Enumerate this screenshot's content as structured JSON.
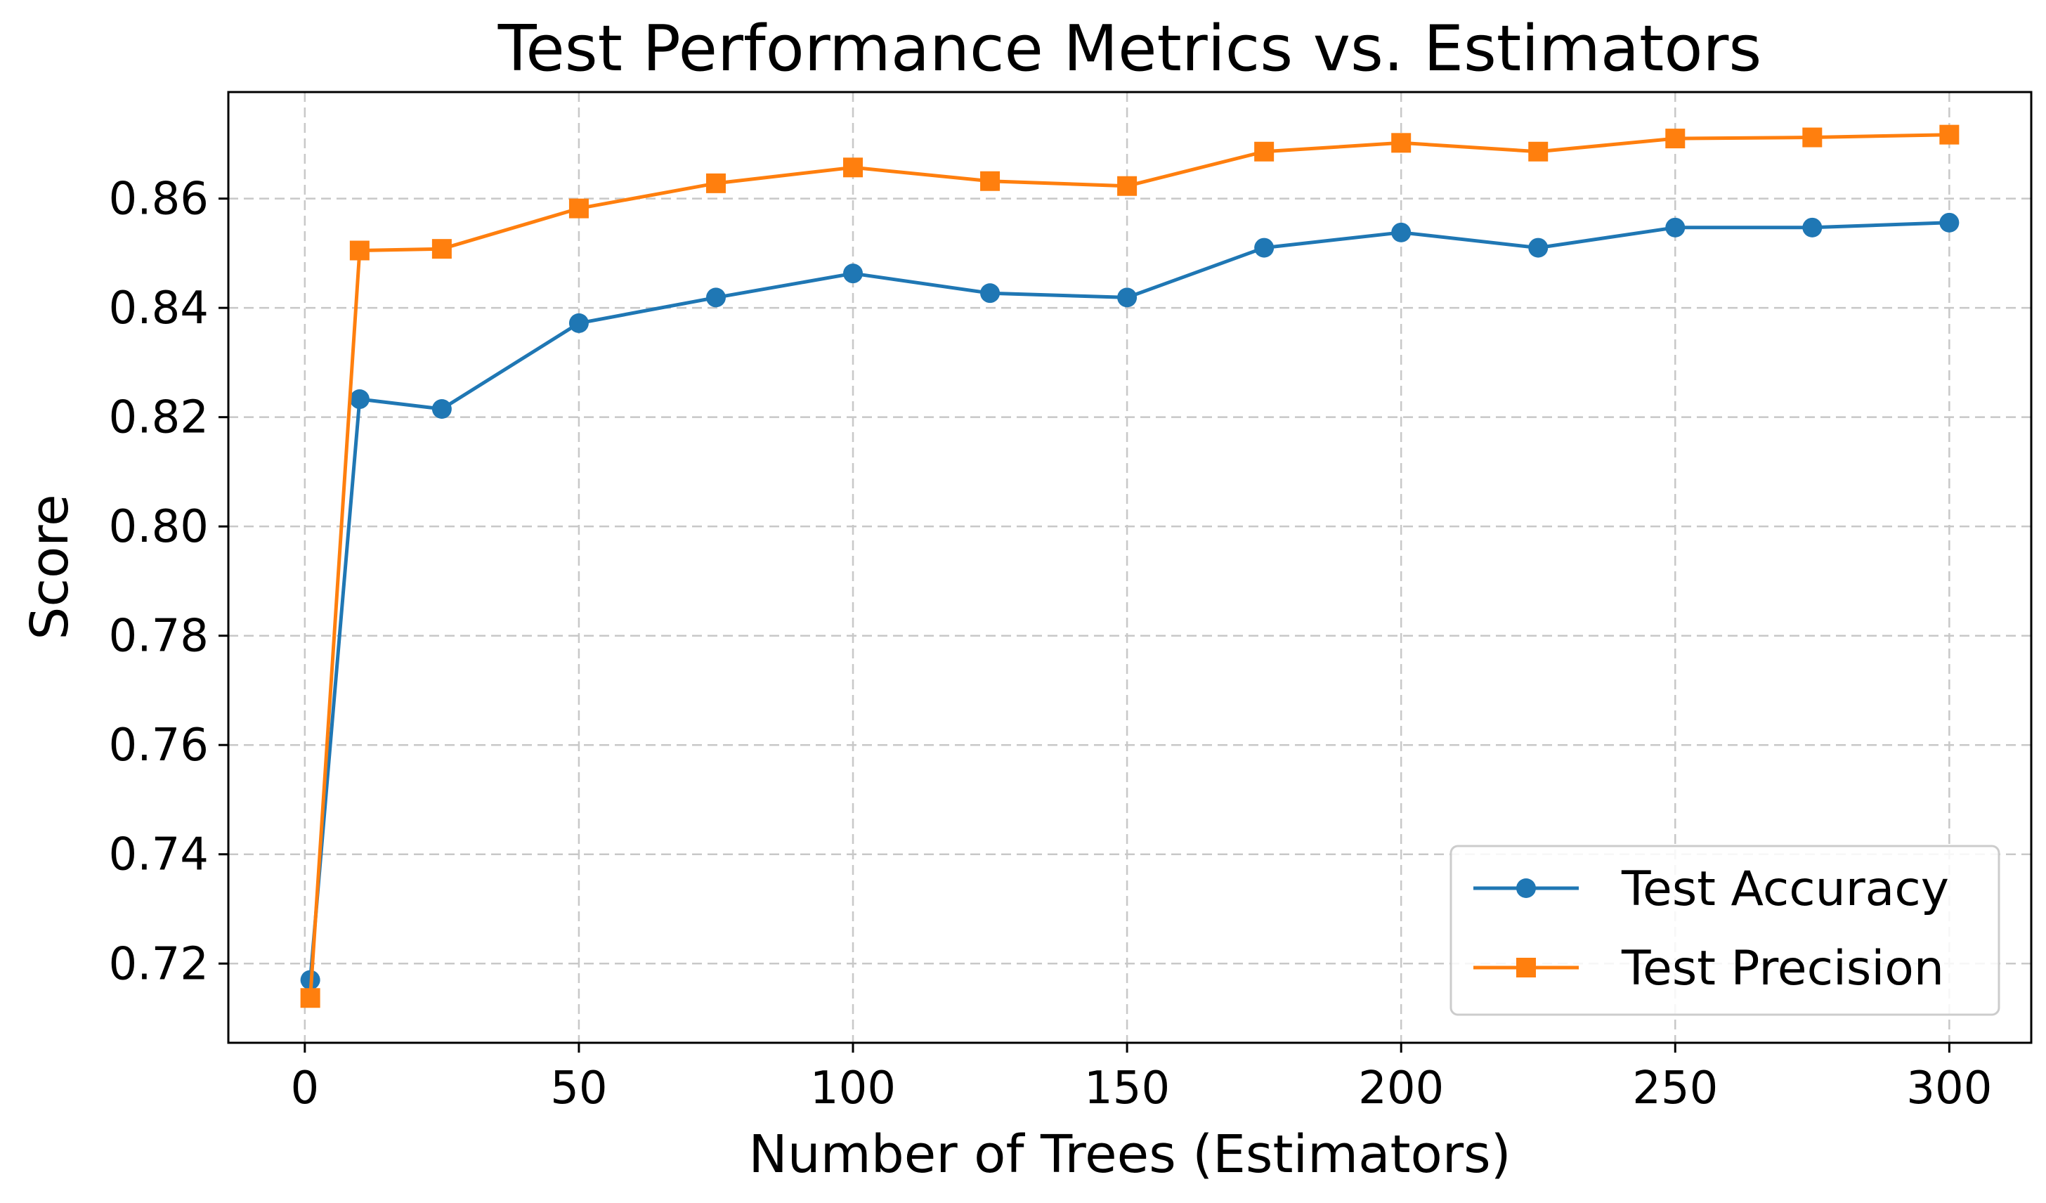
{
  "chart_data": {
    "type": "line",
    "title": "Test Performance Metrics vs. Estimators",
    "xlabel": "Number of Trees (Estimators)",
    "ylabel": "Score",
    "xlim": [
      -13.95,
      314.95
    ],
    "ylim": [
      0.7055,
      0.8795
    ],
    "xticks": [
      0,
      50,
      100,
      150,
      200,
      250,
      300
    ],
    "xtick_labels": [
      "0",
      "50",
      "100",
      "150",
      "200",
      "250",
      "300"
    ],
    "yticks": [
      0.72,
      0.74,
      0.76,
      0.78,
      0.8,
      0.82,
      0.84,
      0.86
    ],
    "ytick_labels": [
      "0.72",
      "0.74",
      "0.76",
      "0.78",
      "0.80",
      "0.82",
      "0.84",
      "0.86"
    ],
    "grid": true,
    "legend_position": "lower-right",
    "x": [
      1,
      10,
      25,
      50,
      75,
      100,
      125,
      150,
      175,
      200,
      225,
      250,
      275,
      300
    ],
    "series": [
      {
        "name": "Test Accuracy",
        "color": "#1f77b4",
        "marker": "circle",
        "values": [
          0.717,
          0.8233,
          0.8215,
          0.8372,
          0.8419,
          0.8463,
          0.8427,
          0.8419,
          0.851,
          0.8538,
          0.851,
          0.8547,
          0.8547,
          0.8556
        ]
      },
      {
        "name": "Test Precision",
        "color": "#ff7f0e",
        "marker": "square",
        "values": [
          0.7137,
          0.8505,
          0.8508,
          0.8582,
          0.8628,
          0.8657,
          0.8632,
          0.8623,
          0.8686,
          0.8702,
          0.8686,
          0.871,
          0.8712,
          0.8717
        ]
      }
    ]
  }
}
